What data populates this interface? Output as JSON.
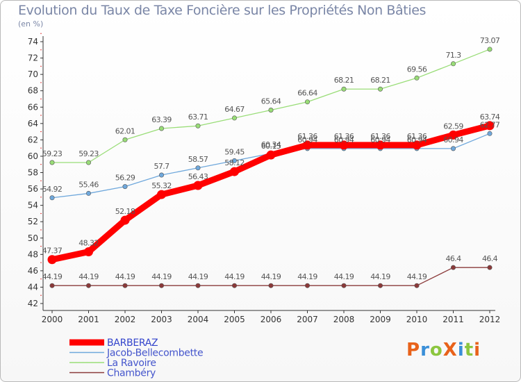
{
  "title": "Evolution du Taux de Taxe Foncière sur les Propriétés Non Bâties",
  "subtitle": "(en %)",
  "logo": {
    "text": "ProXiti",
    "colors": [
      "#e8621a",
      "#3a8fd8",
      "#8cc63f",
      "#e8621a",
      "#3a8fd8",
      "#8cc63f",
      "#e8621a"
    ]
  },
  "chart_data": {
    "type": "line",
    "title": "Evolution du Taux de Taxe Foncière sur les Propriétés Non Bâties",
    "ylabel": "(en %)",
    "xlabel": "",
    "x": [
      "2000",
      "2001",
      "2002",
      "2003",
      "2004",
      "2005",
      "2006",
      "2007",
      "2008",
      "2009",
      "2010",
      "2011",
      "2012"
    ],
    "ylim": [
      42,
      74
    ],
    "yticks": [
      42,
      44,
      46,
      48,
      50,
      52,
      54,
      56,
      58,
      60,
      62,
      64,
      66,
      68,
      70,
      72,
      74
    ],
    "grid": false,
    "legend": "bottom-left",
    "series": [
      {
        "name": "BARBERAZ",
        "color": "#ff0000",
        "values": [
          47.37,
          48.32,
          52.18,
          55.32,
          56.43,
          58.12,
          60.15,
          61.36,
          61.36,
          61.36,
          61.36,
          62.59,
          63.74
        ],
        "labels": [
          "47.37",
          "48.32",
          "52.18",
          "55.32",
          "56.43",
          "58.12",
          "60.15",
          "61.36",
          "61.36",
          "61.36",
          "61.36",
          "62.59",
          "63.74"
        ]
      },
      {
        "name": "Jacob-Bellecombette",
        "color": "#6fa8dc",
        "values": [
          54.92,
          55.46,
          56.29,
          57.7,
          58.57,
          59.45,
          60.34,
          60.94,
          60.94,
          60.94,
          60.94,
          60.94,
          62.77
        ],
        "labels": [
          "54.92",
          "55.46",
          "56.29",
          "57.7",
          "58.57",
          "59.45",
          "60.34",
          "60.94",
          "60.94",
          "60.94",
          "60.94",
          "60.94",
          "62.77"
        ]
      },
      {
        "name": "La Ravoire",
        "color": "#99dd77",
        "values": [
          59.23,
          59.23,
          62.01,
          63.39,
          63.71,
          64.67,
          65.64,
          66.64,
          68.21,
          68.21,
          69.56,
          71.3,
          73.07
        ],
        "labels": [
          "59.23",
          "59.23",
          "62.01",
          "63.39",
          "63.71",
          "64.67",
          "65.64",
          "66.64",
          "68.21",
          "68.21",
          "69.56",
          "71.3",
          "73.07"
        ]
      },
      {
        "name": "Chambéry",
        "color": "#8b3a3a",
        "values": [
          44.19,
          44.19,
          44.19,
          44.19,
          44.19,
          44.19,
          44.19,
          44.19,
          44.19,
          44.19,
          44.19,
          46.4,
          46.4
        ],
        "labels": [
          "44.19",
          "44.19",
          "44.19",
          "44.19",
          "44.19",
          "44.19",
          "44.19",
          "44.19",
          "44.19",
          "44.19",
          "44.19",
          "46.4",
          "46.4"
        ]
      }
    ]
  }
}
